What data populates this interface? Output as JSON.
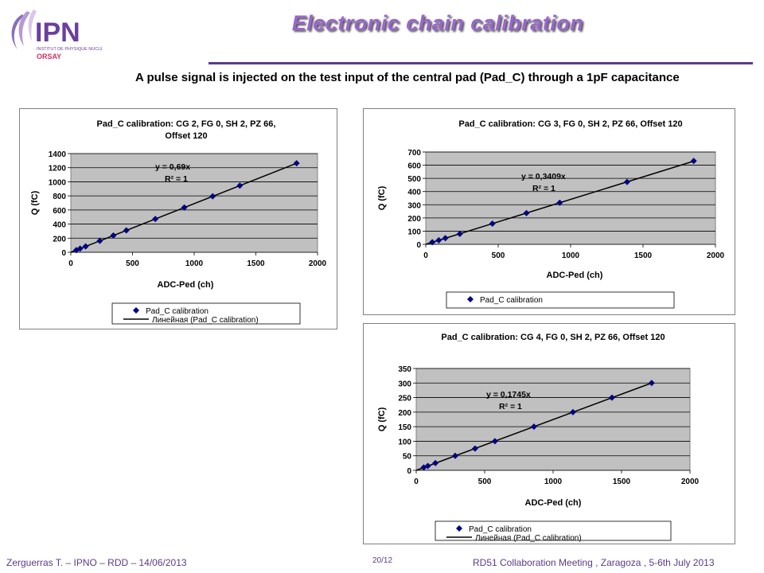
{
  "header": {
    "title": "Electronic chain calibration",
    "logo_text": "IPN",
    "logo_subtitle": "INSTITUT DE PHYSIQUE NUCLÉAIRE",
    "logo_city": "ORSAY"
  },
  "intro_text": "A pulse signal is injected on the test input of the central pad (Pad_C) through a 1pF capacitance",
  "colors": {
    "title": "#9966cc",
    "rule": "#5b3a8a",
    "plot_bg": "#c0c0c0",
    "marker": "#000080",
    "fit_line": "#000000"
  },
  "footer": {
    "left": "Zerguerras T. – IPNO – RDD – 14/06/2013",
    "center": "20/12",
    "right": "RD51 Collaboration Meeting , Zaragoza , 5-6th July 2013"
  },
  "chart_data": [
    {
      "type": "scatter",
      "title": "Pad_C calibration: CG 2, FG 0, SH 2, PZ 66, Offset 120",
      "xlabel": "ADC-Ped (ch)",
      "ylabel": "Q (fC)",
      "xlim": [
        0,
        2000
      ],
      "ylim": [
        0,
        1400
      ],
      "xticks": [
        0,
        500,
        1000,
        1500,
        2000
      ],
      "yticks": [
        0,
        200,
        400,
        600,
        800,
        1000,
        1200,
        1400
      ],
      "equation": "y = 0,69x",
      "r2": "R² = 1",
      "grid": true,
      "legend": [
        "Pad_C calibration",
        "Линейная (Pad_C calibration)"
      ],
      "legend_position": "bottom",
      "series": [
        {
          "name": "Pad_C calibration",
          "x": [
            45,
            75,
            120,
            235,
            345,
            450,
            685,
            920,
            1150,
            1370,
            1830
          ],
          "y": [
            31,
            52,
            83,
            162,
            238,
            311,
            473,
            635,
            794,
            945,
            1263
          ]
        }
      ],
      "fit": {
        "slope": 0.69
      }
    },
    {
      "type": "scatter",
      "title": "Pad_C calibration: CG 3, FG 0, SH 2, PZ 66, Offset 120",
      "xlabel": "ADC-Ped (ch)",
      "ylabel": "Q (fC)",
      "xlim": [
        0,
        2000
      ],
      "ylim": [
        0,
        700
      ],
      "xticks": [
        0,
        500,
        1000,
        1500,
        2000
      ],
      "yticks": [
        0,
        100,
        200,
        300,
        400,
        500,
        600,
        700
      ],
      "equation": "y = 0,3409x",
      "r2": "R² = 1",
      "grid": true,
      "legend": [
        "Pad_C calibration"
      ],
      "legend_position": "bottom",
      "series": [
        {
          "name": "Pad_C calibration",
          "x": [
            45,
            90,
            135,
            235,
            460,
            695,
            925,
            1390,
            1850
          ],
          "y": [
            16,
            31,
            47,
            79,
            157,
            237,
            315,
            473,
            632
          ]
        }
      ],
      "fit": {
        "slope": 0.3409
      }
    },
    {
      "type": "scatter",
      "title": "Pad_C calibration: CG 4, FG 0, SH 2, PZ 66, Offset 120",
      "xlabel": "ADC-Ped (ch)",
      "ylabel": "Q (fC)",
      "xlim": [
        0,
        2000
      ],
      "ylim": [
        0,
        350
      ],
      "xticks": [
        0,
        500,
        1000,
        1500,
        2000
      ],
      "yticks": [
        0,
        50,
        100,
        150,
        200,
        250,
        300,
        350
      ],
      "equation": "y = 0,1745x",
      "r2": "R² = 1",
      "grid": true,
      "legend": [
        "Pad_C calibration",
        "Линейная (Pad_C calibration)"
      ],
      "legend_position": "bottom",
      "series": [
        {
          "name": "Pad_C calibration",
          "x": [
            55,
            85,
            140,
            285,
            430,
            575,
            860,
            1145,
            1430,
            1720
          ],
          "y": [
            10,
            15,
            25,
            50,
            75,
            100,
            150,
            200,
            250,
            300
          ]
        }
      ],
      "fit": {
        "slope": 0.1745
      }
    }
  ]
}
